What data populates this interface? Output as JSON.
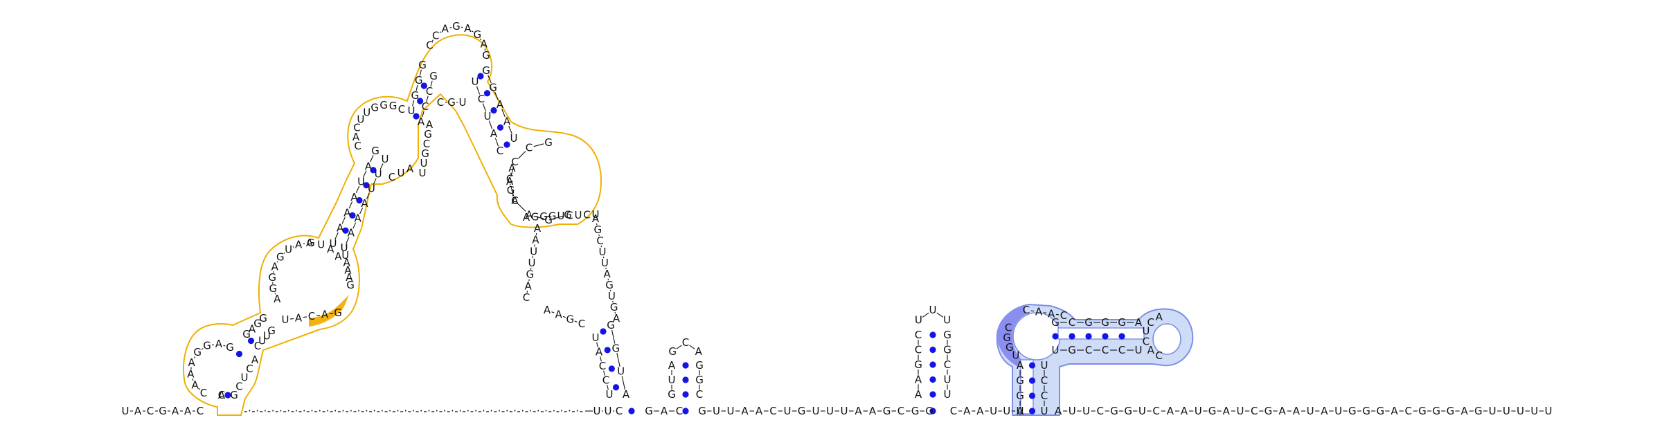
{
  "colors": {
    "pair_dot": "#1414e6",
    "backbone": "#111111",
    "domain_orange_stroke": "#f0b000",
    "domain_orange_accent": "#f5b20f",
    "domain_blue_fill": "#cfdcf7",
    "domain_blue_stroke": "#7c8ee6",
    "domain_blue_accent": "#8a8ef0"
  },
  "sequence": {
    "backbone_5p": "UACGAAC",
    "backbone_mid1": "UUC",
    "backbone_mid2": "GAC",
    "backbone_mid3": "GUUAACUGUUUAAGCGG",
    "backbone_mid4": "CAAUUA",
    "backbone_3p": "AUUCGGUCAAUGAUCGAAUAUGGGACGGGAGUUUUU",
    "gap_marks": "- - - - - - - - - - - - - - - - - - - - - - - - - - - - - - - - - - - - - - - - - - - - - -"
  },
  "structures": {
    "orange_multidomain": {
      "stem1_left": "CAAAGGAG",
      "stem1_right": "GCCUACUG",
      "loop1": "AGGAGUAA",
      "stem2_left": "UAAAUAG",
      "stem2_right": "UAAAUUUCAU",
      "loop2": "CACUUGGGC",
      "apex": "CAGAGAG",
      "right_branch_left": "GGAAU",
      "right_branch_right": "UCUAC",
      "right_loop": "GCCACAGG",
      "right_loop_tail": "AGGGUCUCU",
      "hinge": "CGU"
    },
    "big_loop": {
      "left_side": "AAUUGACAAGC",
      "right_side": "AGCUUAGUGA",
      "stem_left": "UACCU",
      "stem_right": "GGUA"
    },
    "small_hairpin_a": {
      "left": "AUG",
      "right": "GGC",
      "loop": "GCA"
    },
    "small_hairpin_b": {
      "left": "CCGAA",
      "right": "GGCUU",
      "loop": "UUU"
    },
    "blue_domain": {
      "stem_left": "UGGA",
      "stem_right": "UCCU",
      "loop_top": "CAAC",
      "helix_top": "GCGGGA",
      "helix_bottom": "UGCCCU",
      "end_loop": "ACUCAC",
      "accent": "CGGU"
    }
  }
}
